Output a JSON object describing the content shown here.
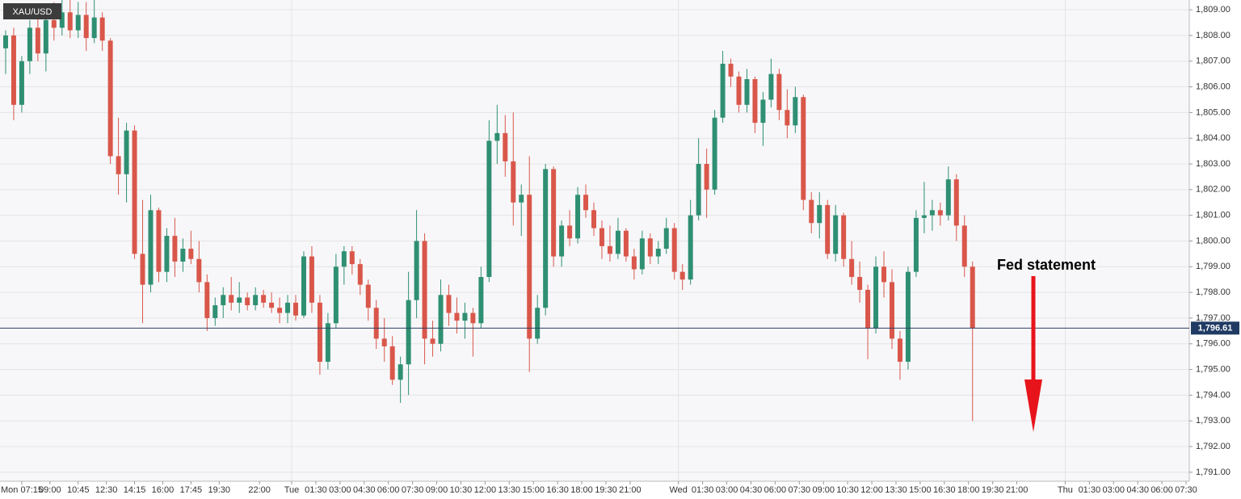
{
  "chart_data": {
    "type": "candlestick",
    "symbol": "XAU/USD",
    "up_color": "#2f8f72",
    "down_color": "#d9574a",
    "grid": true,
    "xlim": [
      -0.7,
      146.9
    ],
    "xticks": [
      {
        "value": 2,
        "label": "Mon 07:15"
      },
      {
        "value": 5.5,
        "label": "09:00"
      },
      {
        "value": 9,
        "label": "10:45"
      },
      {
        "value": 12.5,
        "label": "12:30"
      },
      {
        "value": 16,
        "label": "14:15"
      },
      {
        "value": 19.5,
        "label": "16:00"
      },
      {
        "value": 23,
        "label": "17:45"
      },
      {
        "value": 26.5,
        "label": "19:30"
      },
      {
        "value": 31.5,
        "label": "22:00"
      },
      {
        "value": 35.5,
        "label": "Tue"
      },
      {
        "value": 38.5,
        "label": "01:30"
      },
      {
        "value": 41.5,
        "label": "03:00"
      },
      {
        "value": 44.5,
        "label": "04:30"
      },
      {
        "value": 47.5,
        "label": "06:00"
      },
      {
        "value": 50.5,
        "label": "07:30"
      },
      {
        "value": 53.5,
        "label": "09:00"
      },
      {
        "value": 56.5,
        "label": "10:30"
      },
      {
        "value": 59.5,
        "label": "12:00"
      },
      {
        "value": 62.5,
        "label": "13:30"
      },
      {
        "value": 65.5,
        "label": "15:00"
      },
      {
        "value": 68.5,
        "label": "16:30"
      },
      {
        "value": 71.5,
        "label": "18:00"
      },
      {
        "value": 74.5,
        "label": "19:30"
      },
      {
        "value": 77.5,
        "label": "21:00"
      },
      {
        "value": 83.5,
        "label": "Wed"
      },
      {
        "value": 86.5,
        "label": "01:30"
      },
      {
        "value": 89.5,
        "label": "03:00"
      },
      {
        "value": 92.5,
        "label": "04:30"
      },
      {
        "value": 95.5,
        "label": "06:00"
      },
      {
        "value": 98.5,
        "label": "07:30"
      },
      {
        "value": 101.5,
        "label": "09:00"
      },
      {
        "value": 104.5,
        "label": "10:30"
      },
      {
        "value": 107.5,
        "label": "12:00"
      },
      {
        "value": 110.5,
        "label": "13:30"
      },
      {
        "value": 113.5,
        "label": "15:00"
      },
      {
        "value": 116.5,
        "label": "16:30"
      },
      {
        "value": 119.5,
        "label": "18:00"
      },
      {
        "value": 122.5,
        "label": "19:30"
      },
      {
        "value": 125.5,
        "label": "21:00"
      },
      {
        "value": 131.5,
        "label": "Thu"
      },
      {
        "value": 134.5,
        "label": "01:30"
      },
      {
        "value": 137.5,
        "label": "03:00"
      },
      {
        "value": 140.5,
        "label": "04:30"
      },
      {
        "value": 143.5,
        "label": "06:00"
      },
      {
        "value": 146.5,
        "label": "07:30"
      }
    ],
    "ylim": [
      1790.65,
      1809.38
    ],
    "yticks": [
      {
        "value": 1791,
        "label": "1,791.00"
      },
      {
        "value": 1792,
        "label": "1,792.00"
      },
      {
        "value": 1793,
        "label": "1,793.00"
      },
      {
        "value": 1794,
        "label": "1,794.00"
      },
      {
        "value": 1795,
        "label": "1,795.00"
      },
      {
        "value": 1796,
        "label": "1,796.00"
      },
      {
        "value": 1797,
        "label": "1,797.00"
      },
      {
        "value": 1798,
        "label": "1,798.00"
      },
      {
        "value": 1799,
        "label": "1,799.00"
      },
      {
        "value": 1800,
        "label": "1,800.00"
      },
      {
        "value": 1801,
        "label": "1,801.00"
      },
      {
        "value": 1802,
        "label": "1,802.00"
      },
      {
        "value": 1803,
        "label": "1,803.00"
      },
      {
        "value": 1804,
        "label": "1,804.00"
      },
      {
        "value": 1805,
        "label": "1,805.00"
      },
      {
        "value": 1806,
        "label": "1,806.00"
      },
      {
        "value": 1807,
        "label": "1,807.00"
      },
      {
        "value": 1808,
        "label": "1,808.00"
      },
      {
        "value": 1809,
        "label": "1,809.00"
      }
    ],
    "last_price": {
      "value": 1796.61,
      "label": "1,796.61"
    },
    "annotation": "Fed statement",
    "open": [
      1807.5,
      1808.0,
      1805.3,
      1807.0,
      1808.3,
      1807.3,
      1808.6,
      1808.3,
      1808.9,
      1808.2,
      1808.8,
      1807.9,
      1808.7,
      1807.8,
      1803.3,
      1802.6,
      1804.3,
      1799.5,
      1798.3,
      1801.2,
      1798.8,
      1800.2,
      1799.2,
      1799.7,
      1799.3,
      1798.4,
      1797.0,
      1797.5,
      1797.9,
      1797.6,
      1797.8,
      1797.5,
      1797.9,
      1797.6,
      1797.4,
      1797.2,
      1797.6,
      1797.1,
      1799.4,
      1797.6,
      1795.3,
      1796.8,
      1799.0,
      1799.6,
      1799.1,
      1798.3,
      1797.4,
      1796.2,
      1795.9,
      1794.6,
      1795.2,
      1797.7,
      1800.0,
      1796.2,
      1796.0,
      1797.9,
      1797.2,
      1796.9,
      1797.2,
      1796.8,
      1798.6,
      1803.9,
      1804.2,
      1803.1,
      1801.5,
      1801.8,
      1796.2,
      1797.4,
      1802.8,
      1799.4,
      1800.6,
      1800.1,
      1801.8,
      1801.2,
      1800.5,
      1799.8,
      1799.5,
      1800.4,
      1799.4,
      1798.9,
      1800.1,
      1799.4,
      1799.7,
      1800.5,
      1798.8,
      1798.5,
      1801.0,
      1803.0,
      1802.0,
      1804.8,
      1806.9,
      1806.4,
      1805.3,
      1806.3,
      1804.6,
      1805.5,
      1806.5,
      1805.1,
      1804.5,
      1805.6,
      1801.6,
      1800.7,
      1801.4,
      1799.5,
      1801.0,
      1799.3,
      1798.6,
      1798.1,
      1796.6,
      1799.0,
      1798.4,
      1796.2,
      1795.3,
      1798.8,
      1800.9,
      1801.0,
      1801.2,
      1801.0,
      1802.4,
      1800.6,
      1799.0
    ],
    "high": [
      1808.2,
      1808.3,
      1807.2,
      1808.6,
      1809.2,
      1808.9,
      1809.3,
      1809.4,
      1809.4,
      1809.3,
      1809.3,
      1809.4,
      1808.9,
      1807.9,
      1804.8,
      1804.6,
      1804.5,
      1801.6,
      1801.8,
      1801.3,
      1800.5,
      1800.9,
      1800.1,
      1800.4,
      1800.0,
      1798.7,
      1797.8,
      1798.2,
      1798.6,
      1798.4,
      1798.0,
      1798.2,
      1798.1,
      1798.0,
      1797.8,
      1797.9,
      1797.9,
      1799.6,
      1799.8,
      1797.9,
      1797.2,
      1799.5,
      1799.8,
      1799.8,
      1799.3,
      1798.5,
      1797.7,
      1797.0,
      1796.3,
      1795.5,
      1798.8,
      1801.2,
      1800.3,
      1796.9,
      1798.5,
      1798.3,
      1797.8,
      1797.6,
      1797.4,
      1799.0,
      1804.7,
      1805.3,
      1804.9,
      1805.0,
      1802.2,
      1803.3,
      1797.9,
      1803.0,
      1802.9,
      1800.8,
      1801.2,
      1802.1,
      1802.2,
      1801.5,
      1800.8,
      1800.6,
      1800.9,
      1800.5,
      1799.7,
      1800.4,
      1800.3,
      1800.0,
      1800.9,
      1800.7,
      1799.1,
      1801.6,
      1804.0,
      1803.6,
      1805.1,
      1807.4,
      1807.1,
      1806.6,
      1806.7,
      1806.4,
      1805.8,
      1807.1,
      1806.7,
      1805.9,
      1806.0,
      1805.7,
      1801.9,
      1801.9,
      1801.6,
      1801.4,
      1801.1,
      1800.0,
      1799.2,
      1798.3,
      1799.4,
      1799.6,
      1798.9,
      1796.5,
      1799.0,
      1801.2,
      1802.3,
      1801.6,
      1801.5,
      1802.9,
      1802.6,
      1801.0,
      1799.2
    ],
    "low": [
      1806.5,
      1804.7,
      1805.0,
      1806.5,
      1807.0,
      1806.6,
      1807.8,
      1808.0,
      1807.9,
      1807.9,
      1807.4,
      1807.7,
      1807.4,
      1803.0,
      1801.8,
      1801.5,
      1799.3,
      1796.8,
      1798.0,
      1798.4,
      1798.4,
      1798.6,
      1798.8,
      1799.1,
      1798.0,
      1796.5,
      1796.7,
      1797.0,
      1797.3,
      1797.2,
      1797.3,
      1797.3,
      1797.4,
      1797.2,
      1796.8,
      1796.8,
      1796.9,
      1797.0,
      1797.2,
      1794.8,
      1795.0,
      1796.6,
      1798.3,
      1798.7,
      1797.9,
      1796.9,
      1795.8,
      1795.3,
      1794.4,
      1793.7,
      1794.0,
      1797.0,
      1795.2,
      1795.5,
      1795.7,
      1796.7,
      1796.4,
      1796.2,
      1795.5,
      1796.6,
      1798.4,
      1803.0,
      1802.5,
      1800.6,
      1800.2,
      1794.9,
      1796.0,
      1797.1,
      1799.0,
      1799.0,
      1799.8,
      1799.9,
      1800.9,
      1800.2,
      1799.3,
      1799.2,
      1799.3,
      1799.2,
      1798.5,
      1798.7,
      1799.1,
      1799.1,
      1799.5,
      1798.5,
      1798.1,
      1798.3,
      1800.8,
      1800.9,
      1801.8,
      1804.6,
      1806.0,
      1805.0,
      1805.0,
      1804.2,
      1803.7,
      1805.2,
      1804.7,
      1804.0,
      1804.2,
      1801.2,
      1800.3,
      1800.1,
      1799.3,
      1799.2,
      1799.0,
      1798.3,
      1797.6,
      1795.4,
      1796.4,
      1797.8,
      1795.8,
      1794.6,
      1795.0,
      1798.6,
      1800.3,
      1800.4,
      1800.6,
      1800.8,
      1800.0,
      1798.6,
      1793.0
    ],
    "close": [
      1808.0,
      1805.3,
      1807.0,
      1808.3,
      1807.3,
      1808.6,
      1808.3,
      1808.9,
      1808.2,
      1808.8,
      1807.9,
      1808.7,
      1807.8,
      1803.3,
      1802.6,
      1804.3,
      1799.5,
      1798.3,
      1801.2,
      1798.8,
      1800.2,
      1799.2,
      1799.7,
      1799.3,
      1798.4,
      1797.0,
      1797.5,
      1797.9,
      1797.6,
      1797.8,
      1797.5,
      1797.9,
      1797.6,
      1797.4,
      1797.2,
      1797.6,
      1797.1,
      1799.4,
      1797.6,
      1795.3,
      1796.8,
      1799.0,
      1799.6,
      1799.1,
      1798.3,
      1797.4,
      1796.2,
      1795.9,
      1794.6,
      1795.2,
      1797.7,
      1800.0,
      1796.2,
      1796.0,
      1797.9,
      1797.2,
      1796.9,
      1797.2,
      1796.8,
      1798.6,
      1803.9,
      1804.2,
      1803.1,
      1801.5,
      1801.8,
      1796.2,
      1797.4,
      1802.8,
      1799.4,
      1800.6,
      1800.1,
      1801.8,
      1801.2,
      1800.5,
      1799.8,
      1799.5,
      1800.4,
      1799.4,
      1798.9,
      1800.1,
      1799.4,
      1799.7,
      1800.5,
      1798.8,
      1798.5,
      1801.0,
      1803.0,
      1802.0,
      1804.8,
      1806.9,
      1806.4,
      1805.3,
      1806.3,
      1804.6,
      1805.5,
      1806.5,
      1805.1,
      1804.5,
      1805.6,
      1801.6,
      1800.7,
      1801.4,
      1799.5,
      1801.0,
      1799.3,
      1798.6,
      1798.1,
      1796.6,
      1799.0,
      1798.4,
      1796.2,
      1795.3,
      1798.8,
      1800.9,
      1801.0,
      1801.2,
      1801.0,
      1802.4,
      1800.6,
      1799.0,
      1796.61
    ]
  }
}
